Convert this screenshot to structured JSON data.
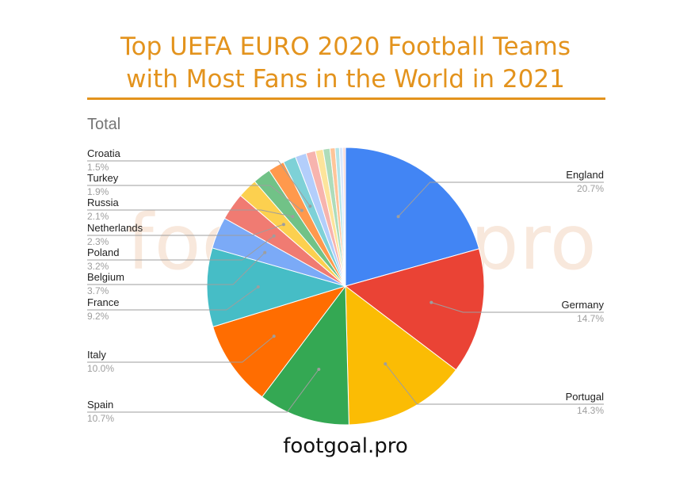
{
  "title_line1": "Top UEFA EURO 2020 Football Teams",
  "title_line2": "with Most Fans in the World in 2021",
  "watermark": "footgoal.pro",
  "source": "footgoal.pro",
  "chart_data": {
    "type": "pie",
    "title": "Total",
    "slices": [
      {
        "label": "England",
        "value": 20.7,
        "pct": "20.7%",
        "color": "#4285f4"
      },
      {
        "label": "Germany",
        "value": 14.7,
        "pct": "14.7%",
        "color": "#ea4335"
      },
      {
        "label": "Portugal",
        "value": 14.3,
        "pct": "14.3%",
        "color": "#fbbc04"
      },
      {
        "label": "Spain",
        "value": 10.7,
        "pct": "10.7%",
        "color": "#34a853"
      },
      {
        "label": "Italy",
        "value": 10.0,
        "pct": "10.0%",
        "color": "#ff6d01"
      },
      {
        "label": "France",
        "value": 9.2,
        "pct": "9.2%",
        "color": "#46bdc6"
      },
      {
        "label": "Belgium",
        "value": 3.7,
        "pct": "3.7%",
        "color": "#7baaf7"
      },
      {
        "label": "Poland",
        "value": 3.2,
        "pct": "3.2%",
        "color": "#f07b72"
      },
      {
        "label": "Netherlands",
        "value": 2.3,
        "pct": "2.3%",
        "color": "#fcd04f"
      },
      {
        "label": "Russia",
        "value": 2.1,
        "pct": "2.1%",
        "color": "#71c287"
      },
      {
        "label": "Turkey",
        "value": 1.9,
        "pct": "1.9%",
        "color": "#ff994d"
      },
      {
        "label": "Croatia",
        "value": 1.5,
        "pct": "1.5%",
        "color": "#7ed1d7"
      },
      {
        "label": "",
        "value": 1.3,
        "color": "#b3cefb"
      },
      {
        "label": "",
        "value": 1.1,
        "color": "#f7b4ae"
      },
      {
        "label": "",
        "value": 0.9,
        "color": "#fde49b"
      },
      {
        "label": "",
        "value": 0.8,
        "color": "#aedcba"
      },
      {
        "label": "",
        "value": 0.6,
        "color": "#ffc599"
      },
      {
        "label": "",
        "value": 0.5,
        "color": "#b5e5e8"
      },
      {
        "label": "",
        "value": 0.4,
        "color": "#dce8fd"
      },
      {
        "label": "",
        "value": 0.3,
        "color": "#fad9d6"
      }
    ],
    "legend": "labels-with-leader-lines"
  }
}
